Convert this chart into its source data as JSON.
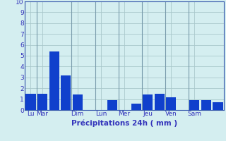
{
  "bars": [
    {
      "label_day": "Lu",
      "value": 1.5
    },
    {
      "label_day": "Mar",
      "value": 1.5
    },
    {
      "label_day": "",
      "value": 5.4
    },
    {
      "label_day": "",
      "value": 3.2
    },
    {
      "label_day": "Dim",
      "value": 1.4
    },
    {
      "label_day": "",
      "value": 0.0
    },
    {
      "label_day": "Lun",
      "value": 0.0
    },
    {
      "label_day": "",
      "value": 0.9
    },
    {
      "label_day": "Mer",
      "value": 0.0
    },
    {
      "label_day": "",
      "value": 0.6
    },
    {
      "label_day": "Jeu",
      "value": 1.4
    },
    {
      "label_day": "",
      "value": 1.5
    },
    {
      "label_day": "Ven",
      "value": 1.2
    },
    {
      "label_day": "",
      "value": 0.0
    },
    {
      "label_day": "Sam",
      "value": 0.9
    },
    {
      "label_day": "",
      "value": 0.9
    },
    {
      "label_day": "",
      "value": 0.7
    }
  ],
  "xlabel": "Précipitations 24h ( mm )",
  "ylim": [
    0,
    10
  ],
  "yticks": [
    0,
    1,
    2,
    3,
    4,
    5,
    6,
    7,
    8,
    9,
    10
  ],
  "background_color": "#d4eef0",
  "grid_color": "#aac8cc",
  "bar_color": "#1040cc",
  "label_color": "#3333bb",
  "xlabel_fontsize": 7.5,
  "tick_fontsize": 6.5,
  "separator_color": "#7799aa",
  "spine_color": "#3355aa"
}
